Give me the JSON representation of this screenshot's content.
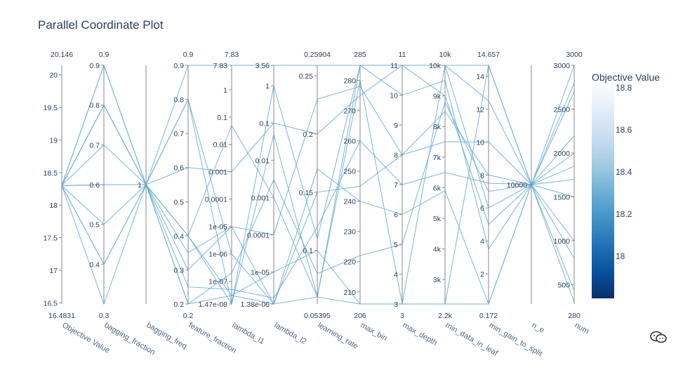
{
  "chart_data": {
    "type": "parallel_coordinates",
    "title": "Parallel Coordinate Plot",
    "colorbar": {
      "title": "Objective Value",
      "range": [
        17.8,
        18.8
      ],
      "ticks": [
        "18.8",
        "18.6",
        "18.4",
        "18.2",
        "18"
      ],
      "tick_values": [
        18.8,
        18.6,
        18.4,
        18.2,
        18.0
      ],
      "colors": [
        "#08306b",
        "#08519c",
        "#2171b5",
        "#4292c6",
        "#6baed6",
        "#9ecae1",
        "#c6dbef",
        "#deebf7",
        "#f7fbff"
      ]
    },
    "dimensions": [
      {
        "label": "Objective Value",
        "min_label": "16.4831",
        "max_label": "20.146",
        "scale": "linear",
        "range": [
          16.4831,
          20.146
        ],
        "ticks": [
          {
            "t": "16.5",
            "v": 16.5
          },
          {
            "t": "17",
            "v": 17
          },
          {
            "t": "17.5",
            "v": 17.5
          },
          {
            "t": "18",
            "v": 18
          },
          {
            "t": "18.5",
            "v": 18.5
          },
          {
            "t": "19",
            "v": 19
          },
          {
            "t": "19.5",
            "v": 19.5
          },
          {
            "t": "20",
            "v": 20
          }
        ]
      },
      {
        "label": "bagging_fraction",
        "min_label": "0.3",
        "max_label": "0.9",
        "scale": "linear",
        "range": [
          0.3,
          0.9
        ],
        "ticks": [
          {
            "t": "0.4",
            "v": 0.4
          },
          {
            "t": "0.5",
            "v": 0.5
          },
          {
            "t": "0.6",
            "v": 0.6
          },
          {
            "t": "0.7",
            "v": 0.7
          },
          {
            "t": "0.8",
            "v": 0.8
          },
          {
            "t": "0.9",
            "v": 0.9
          }
        ]
      },
      {
        "label": "bagging_freq",
        "min_label": "",
        "max_label": "",
        "scale": "linear",
        "range": [
          0,
          2
        ],
        "ticks": [
          {
            "t": "1",
            "v": 1
          }
        ]
      },
      {
        "label": "feature_fraction",
        "min_label": "0.2",
        "max_label": "0.9",
        "scale": "linear",
        "range": [
          0.2,
          0.9
        ],
        "ticks": [
          {
            "t": "0.2",
            "v": 0.2
          },
          {
            "t": "0.3",
            "v": 0.3
          },
          {
            "t": "0.4",
            "v": 0.4
          },
          {
            "t": "0.5",
            "v": 0.5
          },
          {
            "t": "0.6",
            "v": 0.6
          },
          {
            "t": "0.7",
            "v": 0.7
          },
          {
            "t": "0.8",
            "v": 0.8
          },
          {
            "t": "0.9",
            "v": 0.9
          }
        ]
      },
      {
        "label": "lambda_l1",
        "min_label": "",
        "max_label": "7.83",
        "scale": "log",
        "range": [
          1.47e-08,
          7.83
        ],
        "ticks": [
          {
            "t": "1.47e-08",
            "v": 1.47e-08
          },
          {
            "t": "1e-07",
            "v": 1e-07
          },
          {
            "t": "1e-06",
            "v": 1e-06
          },
          {
            "t": "1e-05",
            "v": 1e-05
          },
          {
            "t": "0.0001",
            "v": 0.0001
          },
          {
            "t": "0.001",
            "v": 0.001
          },
          {
            "t": "0.01",
            "v": 0.01
          },
          {
            "t": "0.1",
            "v": 0.1
          },
          {
            "t": "1",
            "v": 1
          },
          {
            "t": "7.83",
            "v": 7.83
          }
        ]
      },
      {
        "label": "lambda_l2",
        "min_label": "",
        "max_label": "",
        "scale": "log",
        "range": [
          1.38e-06,
          3.56
        ],
        "ticks": [
          {
            "t": "1.38e-06",
            "v": 1.38e-06
          },
          {
            "t": "1e-05",
            "v": 1e-05
          },
          {
            "t": "0.0001",
            "v": 0.0001
          },
          {
            "t": "0.001",
            "v": 0.001
          },
          {
            "t": "0.01",
            "v": 0.01
          },
          {
            "t": "0.1",
            "v": 0.1
          },
          {
            "t": "1",
            "v": 1
          },
          {
            "t": "3.56",
            "v": 3.56
          }
        ]
      },
      {
        "label": "learning_rate",
        "min_label": "0.05395",
        "max_label": "0.25904",
        "scale": "linear",
        "range": [
          0.05395,
          0.25904
        ],
        "ticks": [
          {
            "t": "0.1",
            "v": 0.1
          },
          {
            "t": "0.15",
            "v": 0.15
          },
          {
            "t": "0.2",
            "v": 0.2
          },
          {
            "t": "0.25",
            "v": 0.25
          }
        ]
      },
      {
        "label": "max_bin",
        "min_label": "206",
        "max_label": "285",
        "scale": "linear",
        "range": [
          206,
          285
        ],
        "ticks": [
          {
            "t": "210",
            "v": 210
          },
          {
            "t": "220",
            "v": 220
          },
          {
            "t": "230",
            "v": 230
          },
          {
            "t": "240",
            "v": 240
          },
          {
            "t": "250",
            "v": 250
          },
          {
            "t": "260",
            "v": 260
          },
          {
            "t": "270",
            "v": 270
          },
          {
            "t": "280",
            "v": 280
          }
        ]
      },
      {
        "label": "max_depth",
        "min_label": "3",
        "max_label": "11",
        "scale": "linear",
        "range": [
          3,
          11
        ],
        "ticks": [
          {
            "t": "3",
            "v": 3
          },
          {
            "t": "4",
            "v": 4
          },
          {
            "t": "5",
            "v": 5
          },
          {
            "t": "6",
            "v": 6
          },
          {
            "t": "7",
            "v": 7
          },
          {
            "t": "8",
            "v": 8
          },
          {
            "t": "9",
            "v": 9
          },
          {
            "t": "10",
            "v": 10
          },
          {
            "t": "11",
            "v": 11
          }
        ]
      },
      {
        "label": "min_data_in_leaf",
        "min_label": "2.2k",
        "max_label": "10k",
        "scale": "linear",
        "range": [
          2200,
          10000
        ],
        "ticks": [
          {
            "t": "3k",
            "v": 3000
          },
          {
            "t": "4k",
            "v": 4000
          },
          {
            "t": "5k",
            "v": 5000
          },
          {
            "t": "6k",
            "v": 6000
          },
          {
            "t": "7k",
            "v": 7000
          },
          {
            "t": "8k",
            "v": 8000
          },
          {
            "t": "9k",
            "v": 9000
          },
          {
            "t": "10k",
            "v": 10000
          }
        ]
      },
      {
        "label": "min_gain_to_split",
        "min_label": "0.172",
        "max_label": "14.657",
        "scale": "linear",
        "range": [
          0.172,
          14.657
        ],
        "ticks": [
          {
            "t": "2",
            "v": 2
          },
          {
            "t": "4",
            "v": 4
          },
          {
            "t": "6",
            "v": 6
          },
          {
            "t": "8",
            "v": 8
          },
          {
            "t": "10",
            "v": 10
          },
          {
            "t": "12",
            "v": 12
          },
          {
            "t": "14",
            "v": 14
          }
        ]
      },
      {
        "label": "n_e",
        "min_label": "",
        "max_label": "",
        "scale": "linear",
        "range": [
          0,
          20000
        ],
        "ticks": [
          {
            "t": "10000",
            "v": 10000
          }
        ]
      },
      {
        "label": "num",
        "min_label": "280",
        "max_label": "3000",
        "scale": "linear",
        "range": [
          280,
          3000
        ],
        "ticks": [
          {
            "t": "500",
            "v": 500
          },
          {
            "t": "1000",
            "v": 1000
          },
          {
            "t": "1500",
            "v": 1500
          },
          {
            "t": "2000",
            "v": 2000
          },
          {
            "t": "2500",
            "v": 2500
          },
          {
            "t": "3000",
            "v": 3000
          }
        ]
      }
    ],
    "records": [
      {
        "objective": 18.3,
        "values": [
          18.3,
          0.9,
          1,
          0.9,
          7.83,
          3.56,
          0.25904,
          285,
          11,
          10000,
          14.657,
          10000,
          3000
        ]
      },
      {
        "objective": 18.3,
        "values": [
          18.3,
          0.9,
          1,
          0.8,
          1e-06,
          1.38e-06,
          0.06,
          285,
          11,
          10000,
          6,
          10000,
          2800
        ]
      },
      {
        "objective": 18.3,
        "values": [
          18.3,
          0.8,
          1,
          0.8,
          1.47e-08,
          0.05,
          0.06,
          280,
          3,
          2200,
          0.172,
          10000,
          2000
        ]
      },
      {
        "objective": 18.3,
        "values": [
          18.3,
          0.8,
          1,
          0.4,
          3e-08,
          1e-05,
          0.1,
          206,
          3,
          10000,
          12.5,
          10000,
          1850
        ]
      },
      {
        "objective": 18.3,
        "values": [
          18.3,
          0.6,
          1,
          0.6,
          0.001,
          0.1,
          0.2,
          275,
          11,
          9000,
          5,
          10000,
          1700
        ]
      },
      {
        "objective": 18.3,
        "values": [
          18.3,
          0.6,
          1,
          0.3,
          1e-05,
          1.38e-06,
          0.15,
          245,
          8,
          8500,
          8,
          10000,
          1500
        ]
      },
      {
        "objective": 18.3,
        "values": [
          18.3,
          0.5,
          1,
          0.2,
          2e-07,
          0.003,
          0.08,
          222,
          5,
          8800,
          7,
          10000,
          1000
        ]
      },
      {
        "objective": 18.3,
        "values": [
          18.3,
          0.4,
          1,
          0.4,
          1.47e-08,
          1.0,
          0.11,
          285,
          10,
          9500,
          3.5,
          10000,
          800
        ]
      },
      {
        "objective": 18.3,
        "values": [
          18.3,
          0.4,
          1,
          0.2,
          3e-08,
          1.38e-06,
          0.17,
          240,
          6,
          5900,
          0.172,
          10000,
          430
        ]
      },
      {
        "objective": 18.3,
        "values": [
          18.3,
          0.3,
          1,
          0.4,
          0.05,
          0.001,
          0.06,
          206,
          3,
          2200,
          14.657,
          10000,
          300
        ]
      },
      {
        "objective": 18.3,
        "values": [
          18.3,
          0.8,
          1,
          0.25,
          5e-08,
          2e-06,
          0.12,
          260,
          7,
          6500,
          7.5,
          10000,
          2200
        ]
      },
      {
        "objective": 18.3,
        "values": [
          18.3,
          0.7,
          1,
          0.35,
          1e-05,
          0.0001,
          0.23,
          278,
          8,
          7500,
          10,
          10000,
          2700
        ]
      }
    ]
  }
}
